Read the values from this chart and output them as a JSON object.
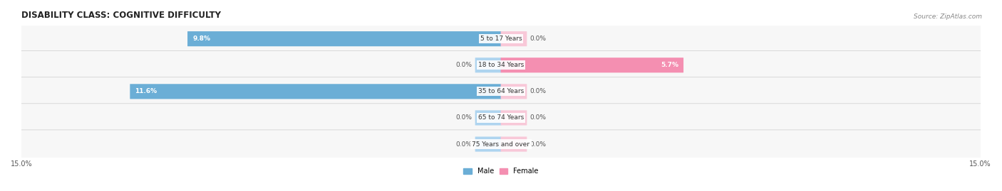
{
  "title": "DISABILITY CLASS: COGNITIVE DIFFICULTY",
  "source": "Source: ZipAtlas.com",
  "categories": [
    "5 to 17 Years",
    "18 to 34 Years",
    "35 to 64 Years",
    "65 to 74 Years",
    "75 Years and over"
  ],
  "male_values": [
    9.8,
    0.0,
    11.6,
    0.0,
    0.0
  ],
  "female_values": [
    0.0,
    5.7,
    0.0,
    0.0,
    0.0
  ],
  "max_val": 15.0,
  "male_color": "#6baed6",
  "female_color": "#f48fb1",
  "male_color_light": "#aed4ef",
  "female_color_light": "#f8c8d8",
  "bar_bg": "#f0f0f0",
  "row_bg": "#f7f7f7",
  "label_color": "#333333",
  "title_color": "#222222",
  "axis_label_color": "#555555",
  "bar_height": 0.55,
  "figsize": [
    14.06,
    2.69
  ],
  "dpi": 100
}
